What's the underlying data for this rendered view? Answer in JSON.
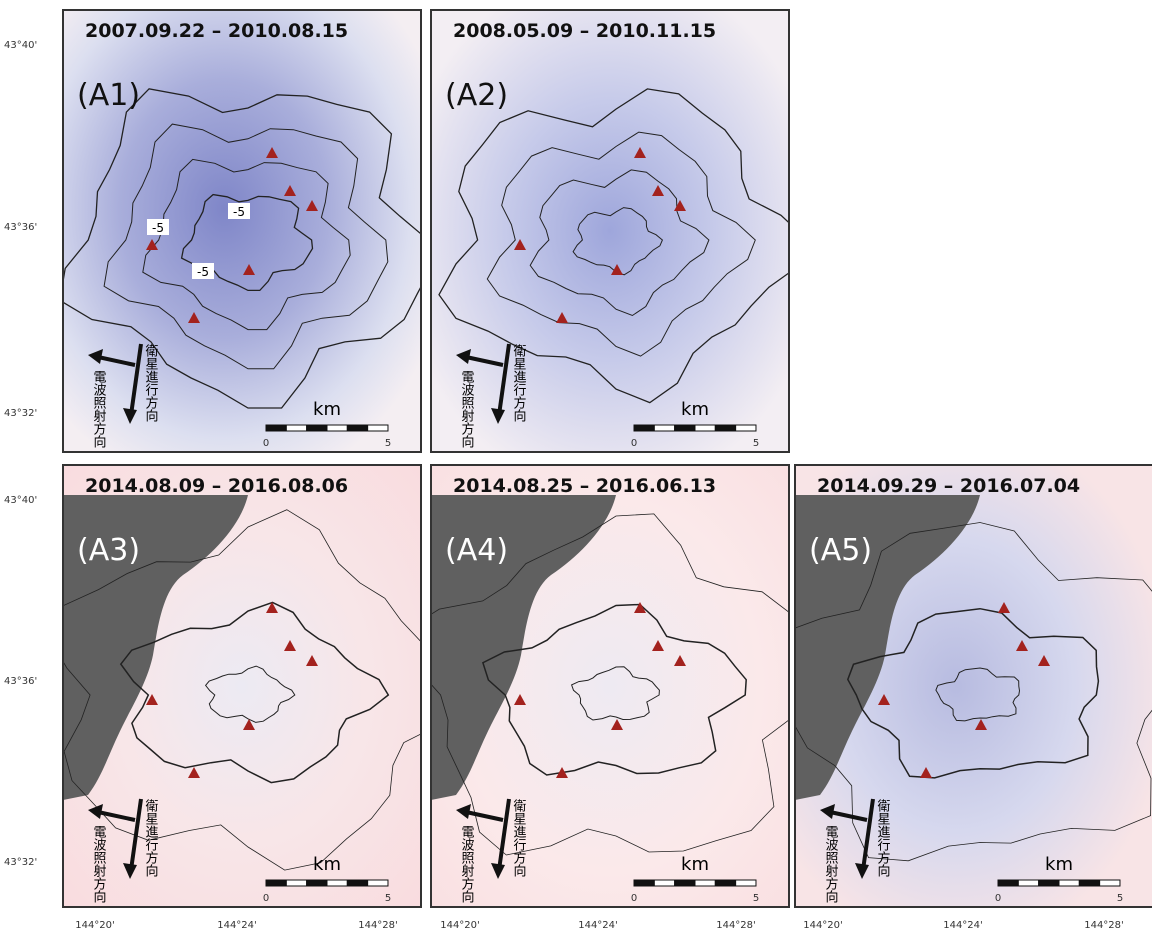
{
  "panels": [
    {
      "dates": "2007.09.22 – 2010.08.15",
      "label": "(A1)",
      "contour_labels": [
        "-5",
        "-5",
        "-5"
      ]
    },
    {
      "dates": "2008.05.09 – 2010.11.15",
      "label": "(A2)"
    },
    {
      "dates": "2014.08.09 – 2016.08.06",
      "label": "(A3)"
    },
    {
      "dates": "2014.08.25 – 2016.06.13",
      "label": "(A4)"
    },
    {
      "dates": "2014.09.29 – 2016.07.04",
      "label": "(A5)"
    }
  ],
  "latitude_labels": [
    "43°40'",
    "43°36'",
    "43°32'"
  ],
  "longitude_labels": [
    "144°20'",
    "144°24'",
    "144°28'"
  ],
  "scale_bar": {
    "unit": "km",
    "start": "0",
    "end": "5"
  },
  "range_direction": "電波照射方向",
  "azimuth_direction": "衛星進行方向"
}
